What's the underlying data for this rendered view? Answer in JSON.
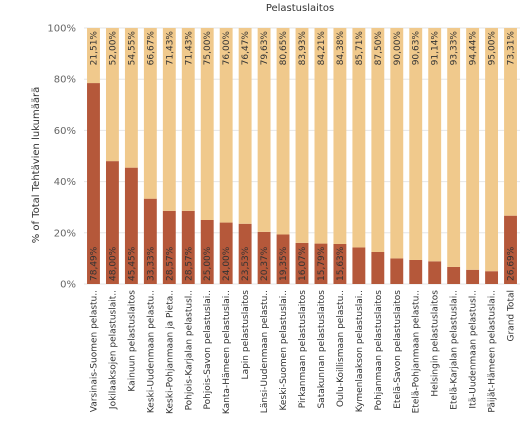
{
  "chart_data": {
    "type": "bar",
    "stacked": true,
    "orientation": "vertical",
    "title": "Pelastuslaitos",
    "ylabel": "% of Total Tehtävien lukumäärä",
    "ylim": [
      0,
      100
    ],
    "yticks": [
      "0%",
      "20%",
      "40%",
      "60%",
      "80%",
      "100%"
    ],
    "grid": true,
    "categories": [
      "Varsinais-Suomen pelastu..",
      "Jokilaaksojen pelastuslait..",
      "Kainuun pelastuslaitos",
      "Keski-Uudenmaan pelastu..",
      "Keski-Pohjanmaan ja Pieta..",
      "Pohjois-Karjalan pelastusl..",
      "Pohjois-Savon pelastuslai..",
      "Kanta-Hämeen pelastuslai..",
      "Lapin pelastuslaitos",
      "Länsi-Uudenmaan pelastu..",
      "Keski-Suomen pelastuslai..",
      "Pirkanmaan pelastuslaitos",
      "Satakunnan pelastuslaitos",
      "Oulu-Koillismaan pelastu..",
      "Kymenlaakson pelastuslai..",
      "Pohjanmaan pelastuslaitos",
      "Etelä-Savon pelastuslaitos",
      "Etelä-Pohjanmaan pelastu..",
      "Helsingin pelastuslaitos",
      "Etelä-Karjalan pelastuslai..",
      "Itä-Uudenmaan pelastusl..",
      "Päijät-Hämeen pelastuslai..",
      "Grand Total"
    ],
    "series": [
      {
        "values": [
          78.49,
          48.0,
          45.45,
          33.33,
          28.57,
          28.57,
          25.0,
          24.0,
          23.53,
          20.37,
          19.35,
          16.07,
          15.79,
          15.63,
          14.29,
          12.5,
          10.0,
          9.38,
          8.86,
          6.67,
          5.56,
          5.0,
          26.69
        ],
        "labels": [
          "78,49%",
          "48,00%",
          "45,45%",
          "33,33%",
          "28,57%",
          "28,57%",
          "25,00%",
          "24,00%",
          "23,53%",
          "20,37%",
          "19,35%",
          "16,07%",
          "15,79%",
          "15,63%",
          "",
          "",
          "",
          "",
          "",
          "",
          "",
          "",
          "26,69%"
        ],
        "color": "#b5583a"
      },
      {
        "values": [
          21.51,
          52.0,
          54.55,
          66.67,
          71.43,
          71.43,
          75.0,
          76.0,
          76.47,
          79.63,
          80.65,
          83.93,
          84.21,
          84.38,
          85.71,
          87.5,
          90.0,
          90.63,
          91.14,
          93.33,
          94.44,
          95.0,
          73.31
        ],
        "labels": [
          "21,51%",
          "52,00%",
          "54,55%",
          "66,67%",
          "71,43%",
          "71,43%",
          "75,00%",
          "76,00%",
          "76,47%",
          "79,63%",
          "80,65%",
          "83,93%",
          "84,21%",
          "84,38%",
          "85,71%",
          "87,50%",
          "90,00%",
          "90,63%",
          "91,14%",
          "93,33%",
          "94,44%",
          "95,00%",
          "73,31%"
        ],
        "color": "#f0c98c"
      }
    ]
  }
}
